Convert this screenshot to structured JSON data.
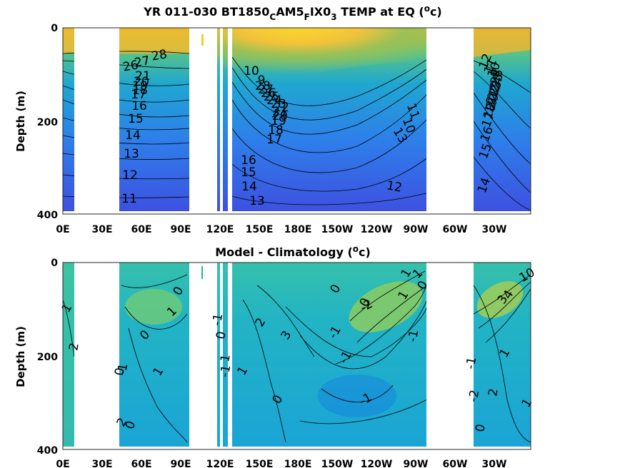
{
  "chart_data": [
    {
      "type": "heatmap",
      "title": "YR 011-030 BT1850_C AM5_F IX0_3 TEMP at EQ (°c)",
      "title_parts": {
        "a": "YR 011-030 BT1850",
        "b": "C",
        "c": "AM5",
        "d": "F",
        "e": "IX0",
        "f": "3",
        "g": " TEMP at EQ (",
        "h": "o",
        "i": "c)"
      },
      "ylabel": "Depth (m)",
      "xlabel": "",
      "x_ticks": [
        "0E",
        "30E",
        "60E",
        "90E",
        "120E",
        "150E",
        "180E",
        "150W",
        "120W",
        "90W",
        "60W",
        "30W"
      ],
      "y_ticks": [
        "0",
        "200",
        "400"
      ],
      "ylim": [
        400,
        0
      ],
      "xlim": [
        0,
        360
      ],
      "colormap": "parula",
      "land_gaps_lon": [
        [
          7,
          43
        ],
        [
          97,
          118
        ],
        [
          121,
          125
        ],
        [
          126,
          128
        ],
        [
          282,
          315
        ]
      ],
      "grid": false,
      "contour_labels": [
        "28",
        "27",
        "26",
        "21",
        "20",
        "19",
        "18",
        "17",
        "16",
        "15",
        "14",
        "13",
        "12",
        "11",
        "10",
        "9",
        "28",
        "27",
        "26",
        "25",
        "24",
        "23",
        "22",
        "21",
        "20",
        "19",
        "18",
        "17",
        "16",
        "15",
        "14",
        "13",
        "12",
        "11",
        "10",
        "13",
        "12",
        "11",
        "10",
        "9",
        "26",
        "25",
        "24",
        "23",
        "22",
        "21",
        "20",
        "19",
        "18",
        "17",
        "16",
        "15",
        "14",
        "13",
        "12",
        "11",
        "10"
      ]
    },
    {
      "type": "heatmap",
      "title": "Model - Climatology (°c)",
      "title_parts": {
        "a": "Model - Climatology (",
        "b": "o",
        "c": "c)"
      },
      "ylabel": "Depth (m)",
      "xlabel": "",
      "x_ticks": [
        "0E",
        "30E",
        "60E",
        "90E",
        "120E",
        "150E",
        "180E",
        "150W",
        "120W",
        "90W",
        "60W",
        "30W"
      ],
      "y_ticks": [
        "0",
        "200",
        "400"
      ],
      "ylim": [
        400,
        0
      ],
      "xlim": [
        0,
        360
      ],
      "colormap": "parula",
      "land_gaps_lon": [
        [
          7,
          43
        ],
        [
          97,
          118
        ],
        [
          121,
          125
        ],
        [
          126,
          128
        ],
        [
          282,
          315
        ]
      ],
      "grid": false,
      "contour_labels": [
        "1",
        "2",
        "0",
        "1",
        "0",
        "-1",
        "1",
        "2",
        "0",
        "-1",
        "0",
        "1",
        "-1",
        "1",
        "2",
        "3",
        "0",
        "-1",
        "-1",
        "0",
        "1",
        "-2",
        "-1",
        "1",
        "0",
        "1",
        "-1",
        "0",
        "0",
        "0",
        "1",
        "2",
        "3",
        "4",
        "10",
        "-1",
        "-2",
        "1"
      ]
    }
  ]
}
